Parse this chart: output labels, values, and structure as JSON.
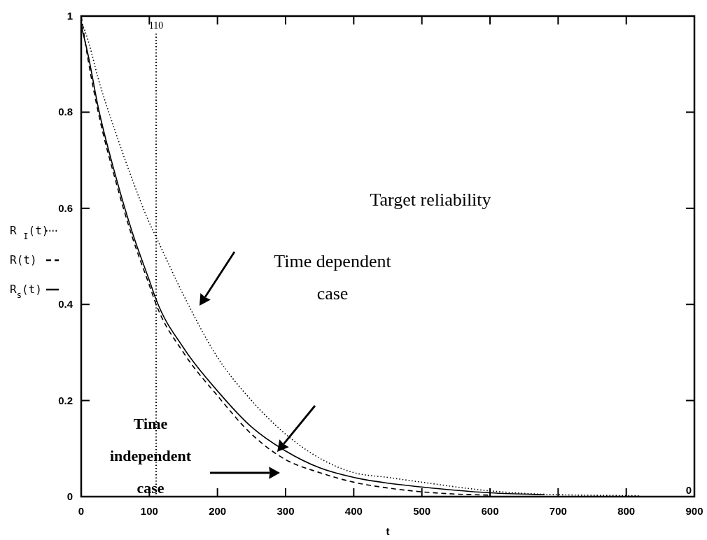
{
  "chart_data": {
    "type": "line",
    "xlabel": "t",
    "xlim": [
      0,
      900
    ],
    "xticks": [
      0,
      100,
      200,
      300,
      400,
      500,
      600,
      700,
      800,
      900
    ],
    "ylim": [
      0,
      1
    ],
    "yticks": [
      0,
      0.2,
      0.4,
      0.6,
      0.8,
      1
    ],
    "legend": "left",
    "grid": false,
    "marker": "none",
    "series": [
      {
        "name": "R $_{I}$(t)",
        "color": "#000000",
        "line_style": "dotted",
        "x": [
          0,
          10,
          25,
          50,
          75,
          100,
          110,
          150,
          200,
          250,
          300,
          350,
          400,
          450,
          500,
          600,
          700,
          820
        ],
        "values": [
          0.99,
          0.95,
          0.87,
          0.76,
          0.66,
          0.57,
          0.54,
          0.42,
          0.29,
          0.2,
          0.13,
          0.08,
          0.05,
          0.04,
          0.03,
          0.012,
          0.004,
          0.002
        ]
      },
      {
        "name": "R(t)",
        "color": "#000000",
        "line_style": "dashed",
        "x": [
          0,
          10,
          25,
          50,
          75,
          100,
          110,
          150,
          200,
          250,
          300,
          350,
          400,
          450,
          500,
          600
        ],
        "values": [
          1,
          0.91,
          0.8,
          0.66,
          0.54,
          0.44,
          0.4,
          0.3,
          0.21,
          0.13,
          0.077,
          0.05,
          0.03,
          0.018,
          0.01,
          0.003
        ]
      },
      {
        "name": "R$_{s}$(t)",
        "color": "#000000",
        "line_style": "solid",
        "x": [
          0,
          10,
          25,
          50,
          75,
          100,
          110,
          150,
          200,
          250,
          300,
          350,
          400,
          450,
          500,
          600,
          680
        ],
        "values": [
          0.98,
          0.92,
          0.81,
          0.67,
          0.55,
          0.45,
          0.41,
          0.31,
          0.22,
          0.145,
          0.095,
          0.06,
          0.04,
          0.028,
          0.02,
          0.008,
          0.004
        ]
      }
    ],
    "ref_lines": [
      {
        "axis": "x",
        "value": 110,
        "label": "110",
        "line_style": "dotted"
      }
    ],
    "annotations": [
      "Time dependent case",
      "Target reliability",
      "Time independent case",
      "0"
    ]
  }
}
